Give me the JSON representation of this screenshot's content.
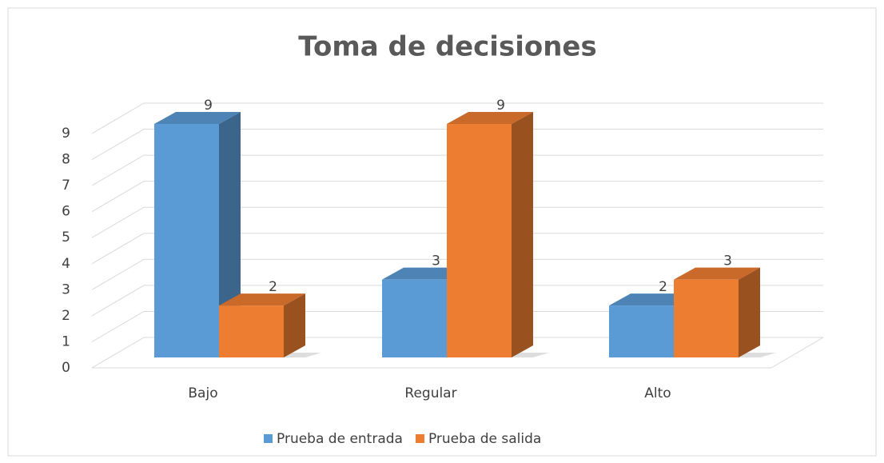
{
  "chart_data": {
    "type": "bar3d",
    "title": "Toma de decisiones",
    "categories": [
      "Bajo",
      "Regular",
      "Alto"
    ],
    "series": [
      {
        "name": "Prueba de entrada",
        "color": "#5b9bd5",
        "values": [
          9,
          3,
          2
        ]
      },
      {
        "name": "Prueba de salida",
        "color": "#ed7d31",
        "values": [
          2,
          9,
          3
        ]
      }
    ],
    "ylim": [
      0,
      9
    ],
    "yticks": [
      0,
      1,
      2,
      3,
      4,
      5,
      6,
      7,
      8,
      9
    ],
    "grid": true,
    "legend": "bottom"
  }
}
